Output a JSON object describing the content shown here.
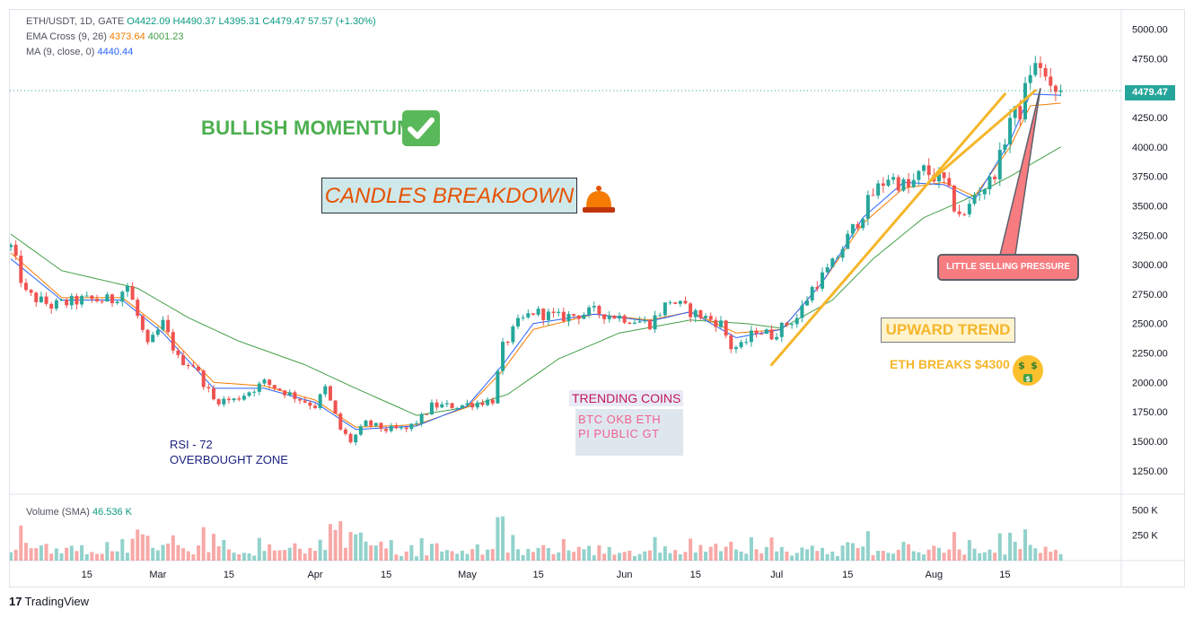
{
  "header": {
    "symbol_line": {
      "symbol": "ETH/USDT, 1D, GATE",
      "open": "O4422.09",
      "high": "H4490.37",
      "low": "L4395.31",
      "close": "C4479.47",
      "change": "57.57 (+1.30%)"
    },
    "ema_line": {
      "label": "EMA Cross (9, 26)",
      "fast": "4373.64",
      "slow": "4001.23"
    },
    "ma_line": {
      "label": "MA (9, close, 0)",
      "value": "4440.44"
    }
  },
  "annotations": {
    "bullish": "BULLISH MOMENTUM",
    "candles": "CANDLES BREAKDOWN",
    "upward": "UPWARD TREND",
    "eth_breaks": "ETH BREAKS $4300",
    "selling": "LITTLE SELLING PRESSURE",
    "trending_title": "TRENDING COINS",
    "coins_line1": "BTC  OKB  ETH",
    "coins_line2": "PI  PUBLIC  GT",
    "rsi_line1": "RSI - 72",
    "rsi_line2": "OVERBOUGHT ZONE"
  },
  "volume_legend": {
    "label": "Volume (SMA)",
    "value": "46.536 K"
  },
  "price_tag": "4479.47",
  "branding": {
    "logo": "TradingView"
  },
  "colors": {
    "up": "#26a69a",
    "down": "#ef5350",
    "ema_fast": "#f57c00",
    "ema_slow": "#43a047",
    "ma": "#2962ff",
    "trend": "#f5b62a"
  },
  "chart_data": {
    "type": "candlestick",
    "price_axis": {
      "ylim": [
        1050,
        5150
      ],
      "ticks": [
        1250,
        1500,
        1750,
        2000,
        2250,
        2500,
        2750,
        3000,
        3250,
        3500,
        3750,
        4000,
        4250,
        4500,
        4750,
        5000
      ],
      "tick_labels": [
        "1250.00",
        "1500.00",
        "1750.00",
        "2000.00",
        "2250.00",
        "2500.00",
        "2750.00",
        "3000.00",
        "3250.00",
        "3500.00",
        "3750.00",
        "4000.00",
        "4250.00",
        "4500.00",
        "4750.00",
        "5000.00"
      ]
    },
    "volume_axis": {
      "ylim": [
        0,
        600000
      ],
      "ticks": [
        250000,
        500000
      ],
      "tick_labels": [
        "250 K",
        "500 K"
      ]
    },
    "time_axis": {
      "ticks": [
        {
          "day": 15,
          "label": "15"
        },
        {
          "day": 29,
          "label": "Mar"
        },
        {
          "day": 43,
          "label": "15"
        },
        {
          "day": 60,
          "label": "Apr"
        },
        {
          "day": 74,
          "label": "15"
        },
        {
          "day": 90,
          "label": "May"
        },
        {
          "day": 104,
          "label": "15"
        },
        {
          "day": 121,
          "label": "Jun"
        },
        {
          "day": 135,
          "label": "15"
        },
        {
          "day": 151,
          "label": "Jul"
        },
        {
          "day": 165,
          "label": "15"
        },
        {
          "day": 182,
          "label": "Aug"
        },
        {
          "day": 196,
          "label": "15"
        }
      ]
    },
    "keypoints": [
      [
        0,
        3150
      ],
      [
        3,
        2750
      ],
      [
        8,
        2650
      ],
      [
        14,
        2700
      ],
      [
        20,
        2700
      ],
      [
        23,
        2820
      ],
      [
        27,
        2300
      ],
      [
        30,
        2500
      ],
      [
        33,
        2200
      ],
      [
        36,
        2150
      ],
      [
        40,
        1850
      ],
      [
        44,
        1850
      ],
      [
        50,
        2000
      ],
      [
        55,
        1900
      ],
      [
        60,
        1800
      ],
      [
        62,
        1950
      ],
      [
        65,
        1600
      ],
      [
        67,
        1500
      ],
      [
        70,
        1650
      ],
      [
        74,
        1600
      ],
      [
        78,
        1600
      ],
      [
        81,
        1700
      ],
      [
        83,
        1800
      ],
      [
        88,
        1800
      ],
      [
        95,
        1850
      ],
      [
        97,
        2300
      ],
      [
        100,
        2500
      ],
      [
        103,
        2600
      ],
      [
        108,
        2550
      ],
      [
        115,
        2600
      ],
      [
        121,
        2550
      ],
      [
        126,
        2500
      ],
      [
        130,
        2700
      ],
      [
        134,
        2600
      ],
      [
        140,
        2500
      ],
      [
        142,
        2300
      ],
      [
        144,
        2300
      ],
      [
        147,
        2450
      ],
      [
        150,
        2400
      ],
      [
        153,
        2500
      ],
      [
        155,
        2550
      ],
      [
        158,
        2800
      ],
      [
        162,
        3000
      ],
      [
        166,
        3300
      ],
      [
        170,
        3600
      ],
      [
        173,
        3750
      ],
      [
        177,
        3650
      ],
      [
        180,
        3800
      ],
      [
        184,
        3700
      ],
      [
        186,
        3500
      ],
      [
        188,
        3400
      ],
      [
        190,
        3600
      ],
      [
        193,
        3700
      ],
      [
        195,
        3900
      ],
      [
        197,
        4250
      ],
      [
        199,
        4300
      ],
      [
        201,
        4650
      ],
      [
        203,
        4700
      ],
      [
        205,
        4450
      ],
      [
        207,
        4479
      ]
    ],
    "ema_fast_keypoints": [
      [
        0,
        3100
      ],
      [
        10,
        2720
      ],
      [
        22,
        2720
      ],
      [
        30,
        2450
      ],
      [
        40,
        2000
      ],
      [
        50,
        1970
      ],
      [
        60,
        1850
      ],
      [
        68,
        1620
      ],
      [
        80,
        1640
      ],
      [
        90,
        1790
      ],
      [
        97,
        2100
      ],
      [
        103,
        2450
      ],
      [
        115,
        2580
      ],
      [
        126,
        2530
      ],
      [
        134,
        2600
      ],
      [
        143,
        2420
      ],
      [
        152,
        2450
      ],
      [
        160,
        2850
      ],
      [
        168,
        3350
      ],
      [
        176,
        3650
      ],
      [
        184,
        3700
      ],
      [
        190,
        3580
      ],
      [
        197,
        4000
      ],
      [
        201,
        4350
      ],
      [
        207,
        4373
      ]
    ],
    "ema_slow_keypoints": [
      [
        0,
        3260
      ],
      [
        10,
        2950
      ],
      [
        25,
        2800
      ],
      [
        35,
        2550
      ],
      [
        45,
        2350
      ],
      [
        58,
        2150
      ],
      [
        68,
        1950
      ],
      [
        80,
        1720
      ],
      [
        90,
        1790
      ],
      [
        98,
        1900
      ],
      [
        108,
        2200
      ],
      [
        120,
        2420
      ],
      [
        134,
        2530
      ],
      [
        145,
        2500
      ],
      [
        152,
        2460
      ],
      [
        162,
        2700
      ],
      [
        170,
        3050
      ],
      [
        180,
        3400
      ],
      [
        188,
        3550
      ],
      [
        197,
        3750
      ],
      [
        207,
        4001
      ]
    ],
    "ma_keypoints": [
      [
        0,
        3050
      ],
      [
        10,
        2700
      ],
      [
        22,
        2700
      ],
      [
        30,
        2420
      ],
      [
        40,
        1950
      ],
      [
        50,
        1950
      ],
      [
        60,
        1830
      ],
      [
        68,
        1600
      ],
      [
        80,
        1630
      ],
      [
        90,
        1800
      ],
      [
        97,
        2150
      ],
      [
        103,
        2500
      ],
      [
        115,
        2580
      ],
      [
        126,
        2520
      ],
      [
        134,
        2600
      ],
      [
        143,
        2380
      ],
      [
        152,
        2450
      ],
      [
        160,
        2850
      ],
      [
        168,
        3400
      ],
      [
        176,
        3700
      ],
      [
        184,
        3680
      ],
      [
        190,
        3550
      ],
      [
        197,
        4050
      ],
      [
        201,
        4450
      ],
      [
        207,
        4440
      ]
    ],
    "trendlines": [
      {
        "name": "trend-line-1",
        "from": [
          150,
          2150
        ],
        "to": [
          196,
          4450
        ]
      },
      {
        "name": "trend-line-2",
        "from": [
          181,
          3700
        ],
        "to": [
          202,
          4480
        ]
      }
    ],
    "last_price": 4479.47
  }
}
